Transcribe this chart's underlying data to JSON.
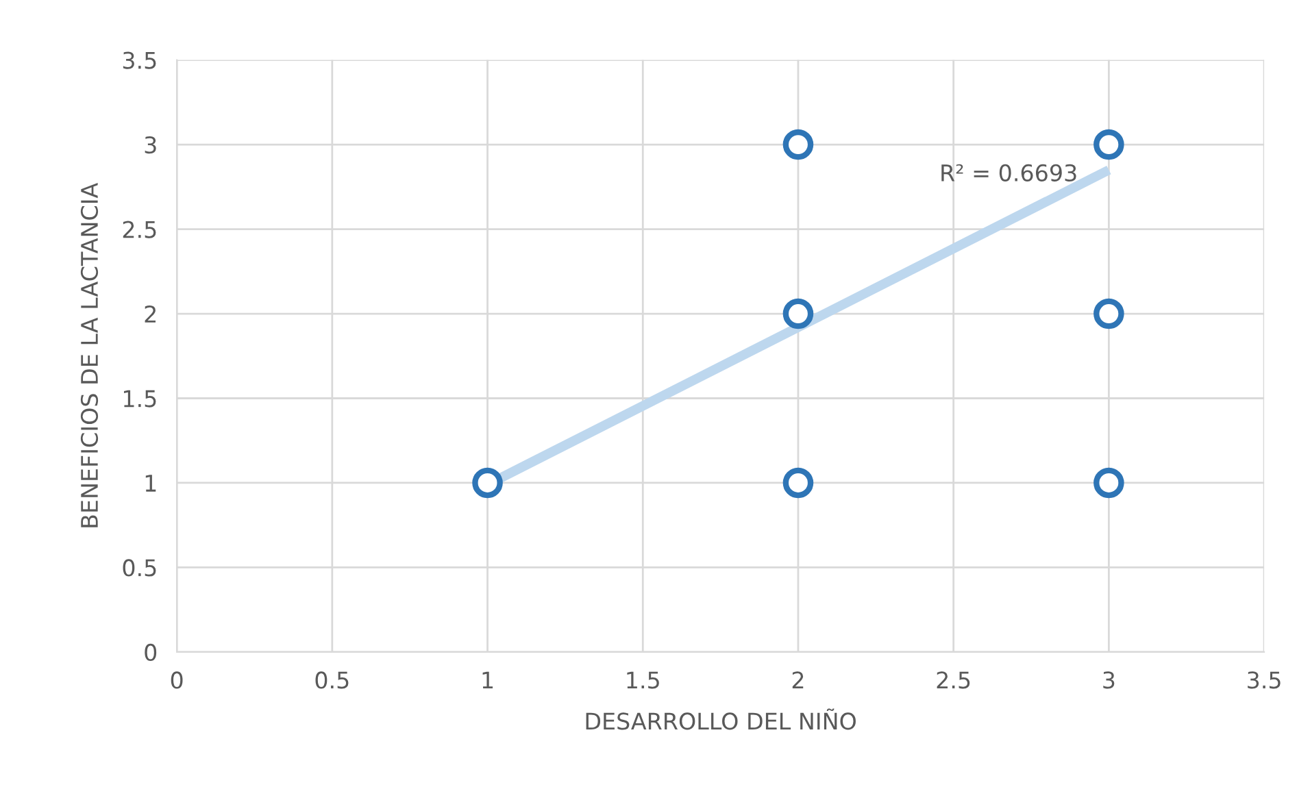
{
  "chart_data": {
    "type": "scatter",
    "xlabel": "DESARROLLO DEL NIÑO",
    "ylabel": "BENEFICIOS DE LA LACTANCIA",
    "xlim": [
      0,
      3.5
    ],
    "xticks": [
      0,
      0.5,
      1,
      1.5,
      2,
      2.5,
      3,
      3.5
    ],
    "ylim": [
      0,
      3.5
    ],
    "yticks": [
      0,
      0.5,
      1,
      1.5,
      2,
      2.5,
      3,
      3.5
    ],
    "grid": true,
    "marker": "circle",
    "series": [
      {
        "color": "#2e75b6",
        "x": [
          1,
          2,
          2,
          2,
          3,
          3,
          3
        ],
        "values": [
          1,
          1,
          2,
          3,
          1,
          2,
          3
        ]
      },
      {
        "type": "line",
        "marker": "none",
        "color": "#bdd7ee",
        "x": [
          1,
          3
        ],
        "values": [
          0.99,
          2.85
        ]
      }
    ],
    "annotations": [
      "R² = 0.6693"
    ]
  }
}
